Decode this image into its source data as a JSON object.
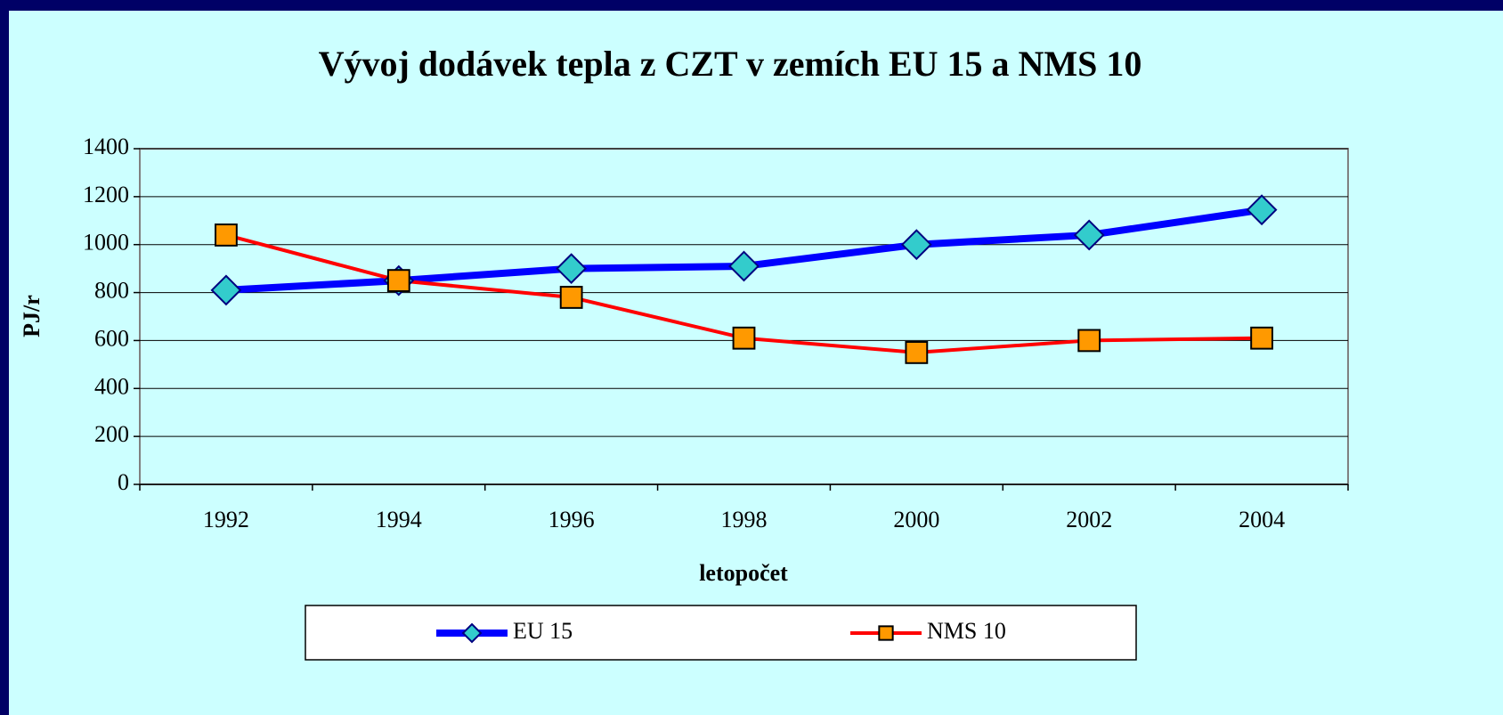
{
  "chart_data": {
    "type": "line",
    "title": "Vývoj dodávek tepla z CZT v zemích EU 15 a NMS 10",
    "x_label": "letopočet",
    "y_label": "PJ/r",
    "categories": [
      "1992",
      "1994",
      "1996",
      "1998",
      "2000",
      "2002",
      "2004"
    ],
    "series": [
      {
        "name": "EU 15",
        "color": "#0000FF",
        "marker": "diamond",
        "marker_color": "#33CCCC",
        "values": [
          810,
          850,
          900,
          910,
          1000,
          1040,
          1145
        ]
      },
      {
        "name": "NMS 10",
        "color": "#FF0000",
        "marker": "square",
        "marker_color": "#FF9900",
        "values": [
          1040,
          850,
          780,
          610,
          550,
          600,
          610
        ]
      }
    ],
    "ylim": [
      0,
      1400
    ],
    "yticks": [
      0,
      200,
      400,
      600,
      800,
      1000,
      1200,
      1400
    ],
    "grid": true,
    "legend": "bottom"
  }
}
